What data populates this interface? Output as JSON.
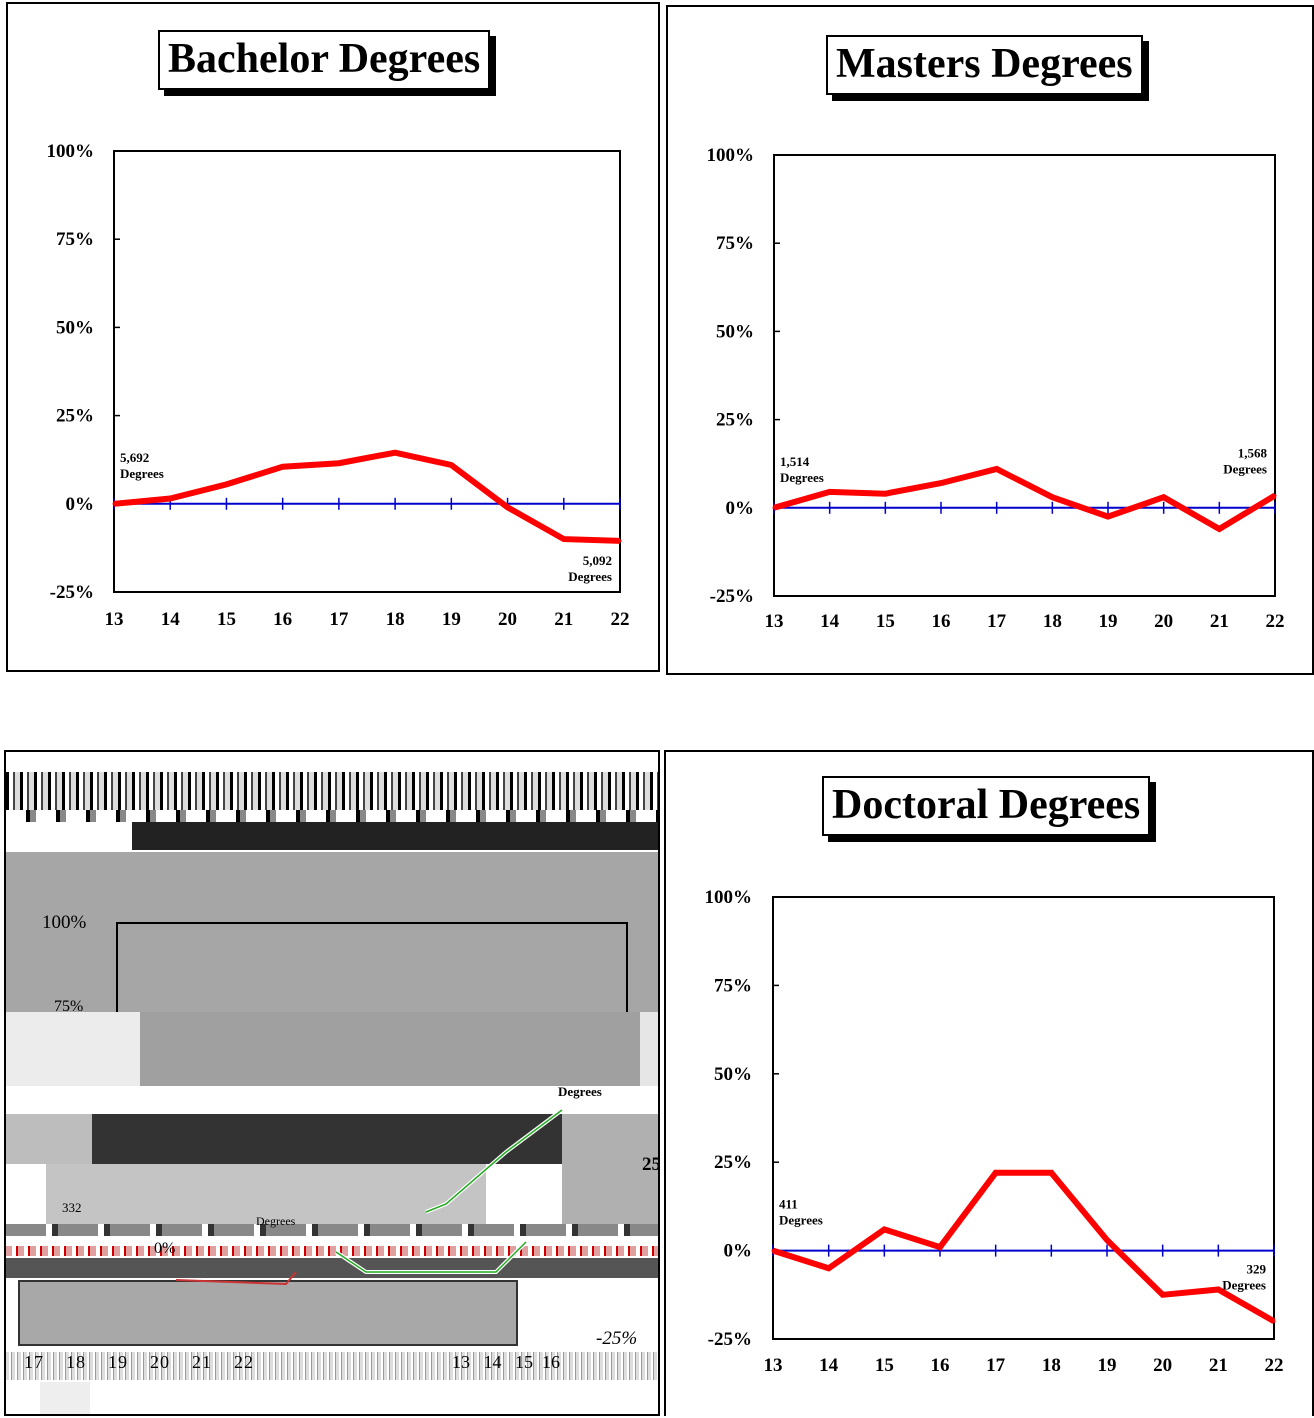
{
  "chart_data": [
    {
      "type": "line",
      "title": "Bachelor Degrees",
      "categories": [
        "13",
        "14",
        "15",
        "16",
        "17",
        "18",
        "19",
        "20",
        "21",
        "22"
      ],
      "series": [
        {
          "values": [
            0,
            1.5,
            5.5,
            10.5,
            11.5,
            14.5,
            11,
            -1,
            -10,
            -10.5
          ]
        }
      ],
      "y_ticks": [
        "100%",
        "75%",
        "50%",
        "25%",
        "0%",
        "-25%"
      ],
      "ylim": [
        -25,
        100
      ],
      "annotations": [
        {
          "line1": "5,692",
          "line2": "Degrees",
          "at": "start"
        },
        {
          "line1": "5,092",
          "line2": "Degrees",
          "at": "end"
        }
      ],
      "colors": {
        "line": "#ff0000",
        "zero_line": "#0000cc"
      }
    },
    {
      "type": "line",
      "title": "Masters Degrees",
      "categories": [
        "13",
        "14",
        "15",
        "16",
        "17",
        "18",
        "19",
        "20",
        "21",
        "22"
      ],
      "series": [
        {
          "values": [
            0,
            4.5,
            4,
            7,
            11,
            3,
            -2.5,
            3,
            -6,
            3.5
          ]
        }
      ],
      "y_ticks": [
        "100%",
        "75%",
        "50%",
        "25%",
        "0%",
        "-25%"
      ],
      "ylim": [
        -25,
        100
      ],
      "annotations": [
        {
          "line1": "1,514",
          "line2": "Degrees",
          "at": "start"
        },
        {
          "line1": "1,568",
          "line2": "Degrees",
          "at": "end"
        }
      ],
      "colors": {
        "line": "#ff0000",
        "zero_line": "#0000cc"
      }
    },
    {
      "type": "line",
      "title": "Doctoral Degrees",
      "categories": [
        "13",
        "14",
        "15",
        "16",
        "17",
        "18",
        "19",
        "20",
        "21",
        "22"
      ],
      "series": [
        {
          "values": [
            0,
            -5,
            6,
            1,
            22,
            22,
            3,
            -12.5,
            -11,
            -20
          ]
        }
      ],
      "y_ticks": [
        "100%",
        "75%",
        "50%",
        "25%",
        "0%",
        "-25%"
      ],
      "ylim": [
        -25,
        100
      ],
      "annotations": [
        {
          "line1": "411",
          "line2": "Degrees",
          "at": "start"
        },
        {
          "line1": "329",
          "line2": "Degrees",
          "at": "end"
        }
      ],
      "colors": {
        "line": "#ff0000",
        "zero_line": "#0000cc"
      }
    }
  ],
  "garbled_panel": {
    "fragments": [
      "100%",
      "75%",
      "Degrees",
      "25",
      "332",
      "Degrees",
      "0%",
      "-25%"
    ],
    "x_fragments": [
      "17",
      "18",
      "19",
      "20",
      "21",
      "22",
      "13",
      "14",
      "15",
      "16"
    ]
  }
}
